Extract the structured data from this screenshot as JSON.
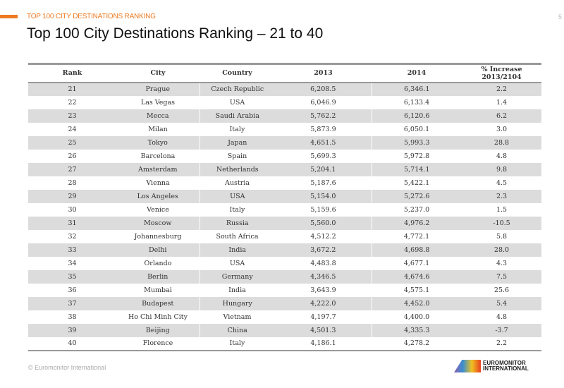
{
  "kicker": "TOP 100 CITY DESTINATIONS RANKING",
  "page_number": "5",
  "title": "Top 100 City Destinations Ranking – 21 to 40",
  "table": {
    "headers": [
      "Rank",
      "City",
      "Country",
      "2013",
      "2014",
      "% Increase 2013/2104"
    ],
    "rows": [
      [
        "21",
        "Prague",
        "Czech Republic",
        "6,208.5",
        "6,346.1",
        "2.2"
      ],
      [
        "22",
        "Las Vegas",
        "USA",
        "6,046.9",
        "6,133.4",
        "1.4"
      ],
      [
        "23",
        "Mecca",
        "Saudi Arabia",
        "5,762.2",
        "6,120.6",
        "6.2"
      ],
      [
        "24",
        "Milan",
        "Italy",
        "5,873.9",
        "6,050.1",
        "3.0"
      ],
      [
        "25",
        "Tokyo",
        "Japan",
        "4,651.5",
        "5,993.3",
        "28.8"
      ],
      [
        "26",
        "Barcelona",
        "Spain",
        "5,699.3",
        "5,972.8",
        "4.8"
      ],
      [
        "27",
        "Amsterdam",
        "Netherlands",
        "5,204.1",
        "5,714.1",
        "9.8"
      ],
      [
        "28",
        "Vienna",
        "Austria",
        "5,187.6",
        "5,422.1",
        "4.5"
      ],
      [
        "29",
        "Los Angeles",
        "USA",
        "5,154.0",
        "5,272.6",
        "2.3"
      ],
      [
        "30",
        "Venice",
        "Italy",
        "5,159.6",
        "5,237.0",
        "1.5"
      ],
      [
        "31",
        "Moscow",
        "Russia",
        "5,560.0",
        "4,976.2",
        "-10.5"
      ],
      [
        "32",
        "Johannesburg",
        "South Africa",
        "4,512.2",
        "4,772.1",
        "5.8"
      ],
      [
        "33",
        "Delhi",
        "India",
        "3,672.2",
        "4,698.8",
        "28.0"
      ],
      [
        "34",
        "Orlando",
        "USA",
        "4,483.8",
        "4,677.1",
        "4.3"
      ],
      [
        "35",
        "Berlin",
        "Germany",
        "4,346.5",
        "4,674.6",
        "7.5"
      ],
      [
        "36",
        "Mumbai",
        "India",
        "3,643.9",
        "4,575.1",
        "25.6"
      ],
      [
        "37",
        "Budapest",
        "Hungary",
        "4,222.0",
        "4,452.0",
        "5.4"
      ],
      [
        "38",
        "Ho Chi Minh City",
        "Vietnam",
        "4,197.7",
        "4,400.0",
        "4.8"
      ],
      [
        "39",
        "Beijing",
        "China",
        "4,501.3",
        "4,335.3",
        "-3.7"
      ],
      [
        "40",
        "Florence",
        "Italy",
        "4,186.1",
        "4,278.2",
        "2.2"
      ]
    ]
  },
  "footer": "© Euromonitor International",
  "logo": {
    "line1": "EUROMONITOR",
    "line2": "INTERNATIONAL"
  }
}
